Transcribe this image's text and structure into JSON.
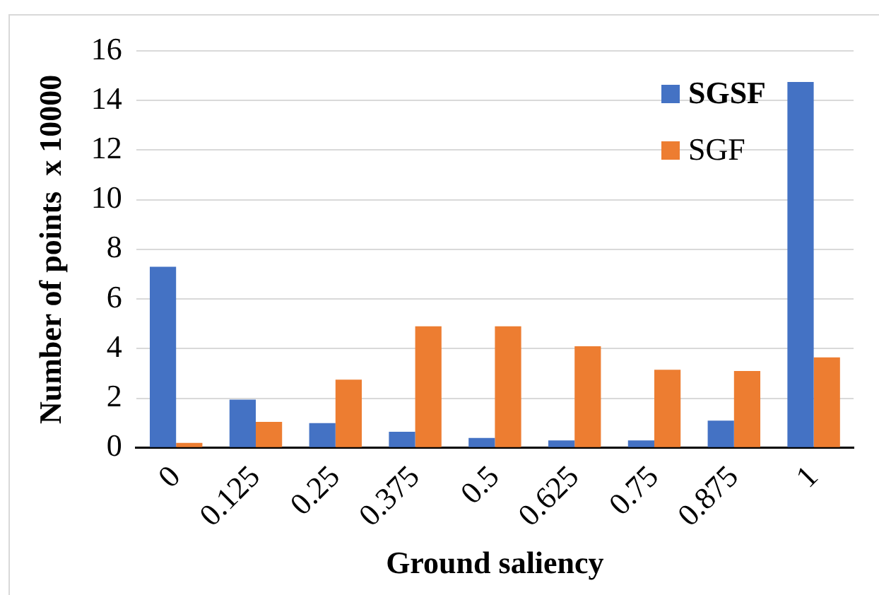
{
  "chart_data": {
    "type": "bar",
    "xlabel": "Ground saliency",
    "ylabel": "Number of points  x 10000",
    "categories": [
      "0",
      "0.125",
      "0.25",
      "0.375",
      "0.5",
      "0.625",
      "0.75",
      "0.875",
      "1"
    ],
    "series": [
      {
        "name": "SGSF",
        "color": "#4472c4",
        "values": [
          7.3,
          1.95,
          1.0,
          0.65,
          0.4,
          0.3,
          0.3,
          1.1,
          14.75
        ]
      },
      {
        "name": "SGF",
        "color": "#ed7d31",
        "values": [
          0.2,
          1.05,
          2.75,
          4.9,
          4.9,
          4.1,
          3.15,
          3.1,
          3.65
        ]
      }
    ],
    "ylim": [
      0,
      16
    ],
    "yticks": [
      0,
      2,
      4,
      6,
      8,
      10,
      12,
      14,
      16
    ],
    "grid": "y",
    "legend": "top right"
  }
}
